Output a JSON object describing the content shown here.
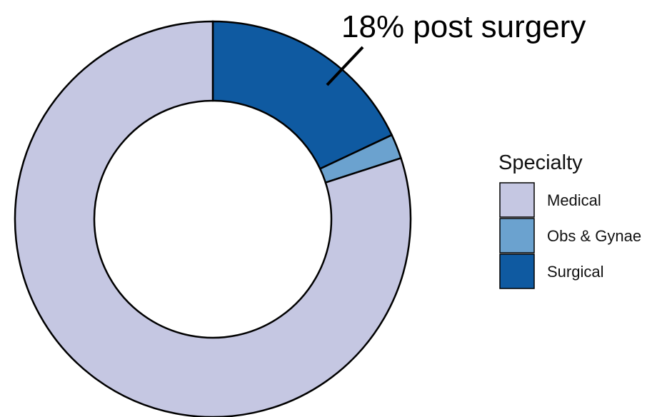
{
  "chart_data": {
    "type": "pie",
    "title": "",
    "categories": [
      "Medical",
      "Obs & Gynae",
      "Surgical"
    ],
    "values": [
      80,
      2,
      18
    ],
    "colors": [
      "#c5c7e2",
      "#6ba2cf",
      "#0f5aa1"
    ],
    "donut": true,
    "annotation": "18% post surgery",
    "legend": {
      "title": "Specialty",
      "position": "right",
      "entries": [
        "Medical",
        "Obs & Gynae",
        "Surgical"
      ]
    }
  }
}
